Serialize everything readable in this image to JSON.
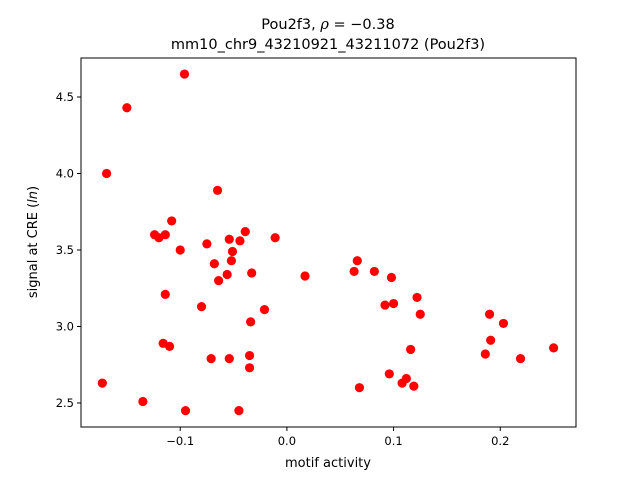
{
  "chart_data": {
    "type": "scatter",
    "title_line1": "Pou2f3, ρ = −0.38",
    "title_line1_prefix": "Pou2f3, ",
    "title_line1_rho": "ρ",
    "title_line1_value": " = −0.38",
    "title_line2": "mm10_chr9_43210921_43211072 (Pou2f3)",
    "xlabel": "motif activity",
    "ylabel_prefix": "signal at CRE (",
    "ylabel_italic": "ln",
    "ylabel_suffix": ")",
    "xlim": [
      -0.193,
      0.271
    ],
    "ylim": [
      2.343,
      4.755
    ],
    "xticks": [
      -0.1,
      0.0,
      0.1,
      0.2
    ],
    "xtick_labels": [
      "−0.1",
      "0.0",
      "0.1",
      "0.2"
    ],
    "yticks": [
      2.5,
      3.0,
      3.5,
      4.0,
      4.5
    ],
    "ytick_labels": [
      "2.5",
      "3.0",
      "3.5",
      "4.0",
      "4.5"
    ],
    "grid": false,
    "marker_color": "#ff0000",
    "x": [
      -0.096,
      -0.15,
      -0.169,
      -0.065,
      -0.108,
      -0.124,
      -0.114,
      -0.12,
      -0.1,
      -0.075,
      -0.039,
      -0.054,
      -0.044,
      -0.011,
      -0.051,
      -0.068,
      -0.052,
      -0.056,
      -0.033,
      -0.064,
      -0.114,
      -0.08,
      -0.021,
      -0.034,
      -0.116,
      -0.11,
      -0.071,
      -0.054,
      -0.035,
      -0.035,
      -0.173,
      -0.135,
      -0.095,
      -0.045,
      0.017,
      0.066,
      0.063,
      0.082,
      0.098,
      0.092,
      0.1,
      0.122,
      0.125,
      0.068,
      0.096,
      0.108,
      0.112,
      0.119,
      0.116,
      0.19,
      0.203,
      0.191,
      0.186,
      0.219,
      0.25
    ],
    "y": [
      4.65,
      4.43,
      4.0,
      3.89,
      3.69,
      3.6,
      3.6,
      3.58,
      3.5,
      3.54,
      3.62,
      3.57,
      3.56,
      3.58,
      3.49,
      3.41,
      3.43,
      3.34,
      3.35,
      3.3,
      3.21,
      3.13,
      3.11,
      3.03,
      2.89,
      2.87,
      2.79,
      2.79,
      2.81,
      2.73,
      2.63,
      2.51,
      2.45,
      2.45,
      3.33,
      3.43,
      3.36,
      3.36,
      3.32,
      3.14,
      3.15,
      3.19,
      3.08,
      2.6,
      2.69,
      2.63,
      2.66,
      2.61,
      2.85,
      3.08,
      3.02,
      2.91,
      2.82,
      2.79,
      2.86
    ]
  }
}
